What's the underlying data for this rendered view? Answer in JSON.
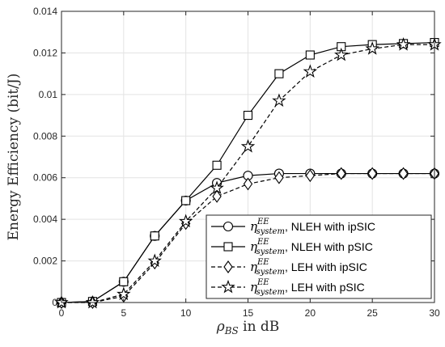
{
  "chart_data": {
    "type": "line",
    "xlabel": "ρBS in dB",
    "xlabel_parts": {
      "symbol": "ρ",
      "sub": "BS",
      "rest": " in dB"
    },
    "ylabel": "Energy Efficiency (bit/J)",
    "xlim": [
      0,
      30
    ],
    "ylim": [
      0,
      0.014
    ],
    "xticks": [
      0,
      5,
      10,
      15,
      20,
      25,
      30
    ],
    "yticks": [
      0,
      0.002,
      0.004,
      0.006,
      0.008,
      0.01,
      0.012,
      0.014
    ],
    "ytick_labels": [
      "0",
      "0.002",
      "0.004",
      "0.006",
      "0.008",
      "0.01",
      "0.012",
      "0.014"
    ],
    "grid": true,
    "legend_position": "lower-right",
    "x": [
      0,
      2.5,
      5,
      7.5,
      10,
      12.5,
      15,
      17.5,
      20,
      22.5,
      25,
      27.5,
      30
    ],
    "series": [
      {
        "name": "η_{system}^{EE}, NLEH with ipSIC",
        "legend_suffix": ", NLEH with ipSIC",
        "marker": "circle",
        "dash": "solid",
        "color": "#000000",
        "values": [
          0,
          5e-05,
          0.001,
          0.0032,
          0.0049,
          0.00575,
          0.0061,
          0.0062,
          0.0062,
          0.0062,
          0.0062,
          0.0062,
          0.0062
        ]
      },
      {
        "name": "η_{system}^{EE}, NLEH with pSIC",
        "legend_suffix": ", NLEH with pSIC",
        "marker": "square",
        "dash": "solid",
        "color": "#000000",
        "values": [
          0,
          5e-05,
          0.001,
          0.0032,
          0.0049,
          0.0066,
          0.009,
          0.011,
          0.0119,
          0.0123,
          0.0124,
          0.01245,
          0.0125
        ]
      },
      {
        "name": "η_{system}^{EE}, LEH with ipSIC",
        "legend_suffix": ", LEH with ipSIC",
        "marker": "diamond",
        "dash": "dashed",
        "color": "#000000",
        "values": [
          0,
          0,
          0.0003,
          0.0019,
          0.0038,
          0.0051,
          0.0057,
          0.006,
          0.0061,
          0.0062,
          0.0062,
          0.0062,
          0.0062
        ]
      },
      {
        "name": "η_{system}^{EE}, LEH with pSIC",
        "legend_suffix": ", LEH with pSIC",
        "marker": "star",
        "dash": "dashed",
        "color": "#000000",
        "values": [
          0,
          0,
          0.0004,
          0.002,
          0.0039,
          0.0055,
          0.0075,
          0.0097,
          0.0111,
          0.0119,
          0.0122,
          0.0124,
          0.0124
        ]
      }
    ],
    "legend_symbol": {
      "base": "η",
      "sup": "EE",
      "sub": "system"
    }
  }
}
